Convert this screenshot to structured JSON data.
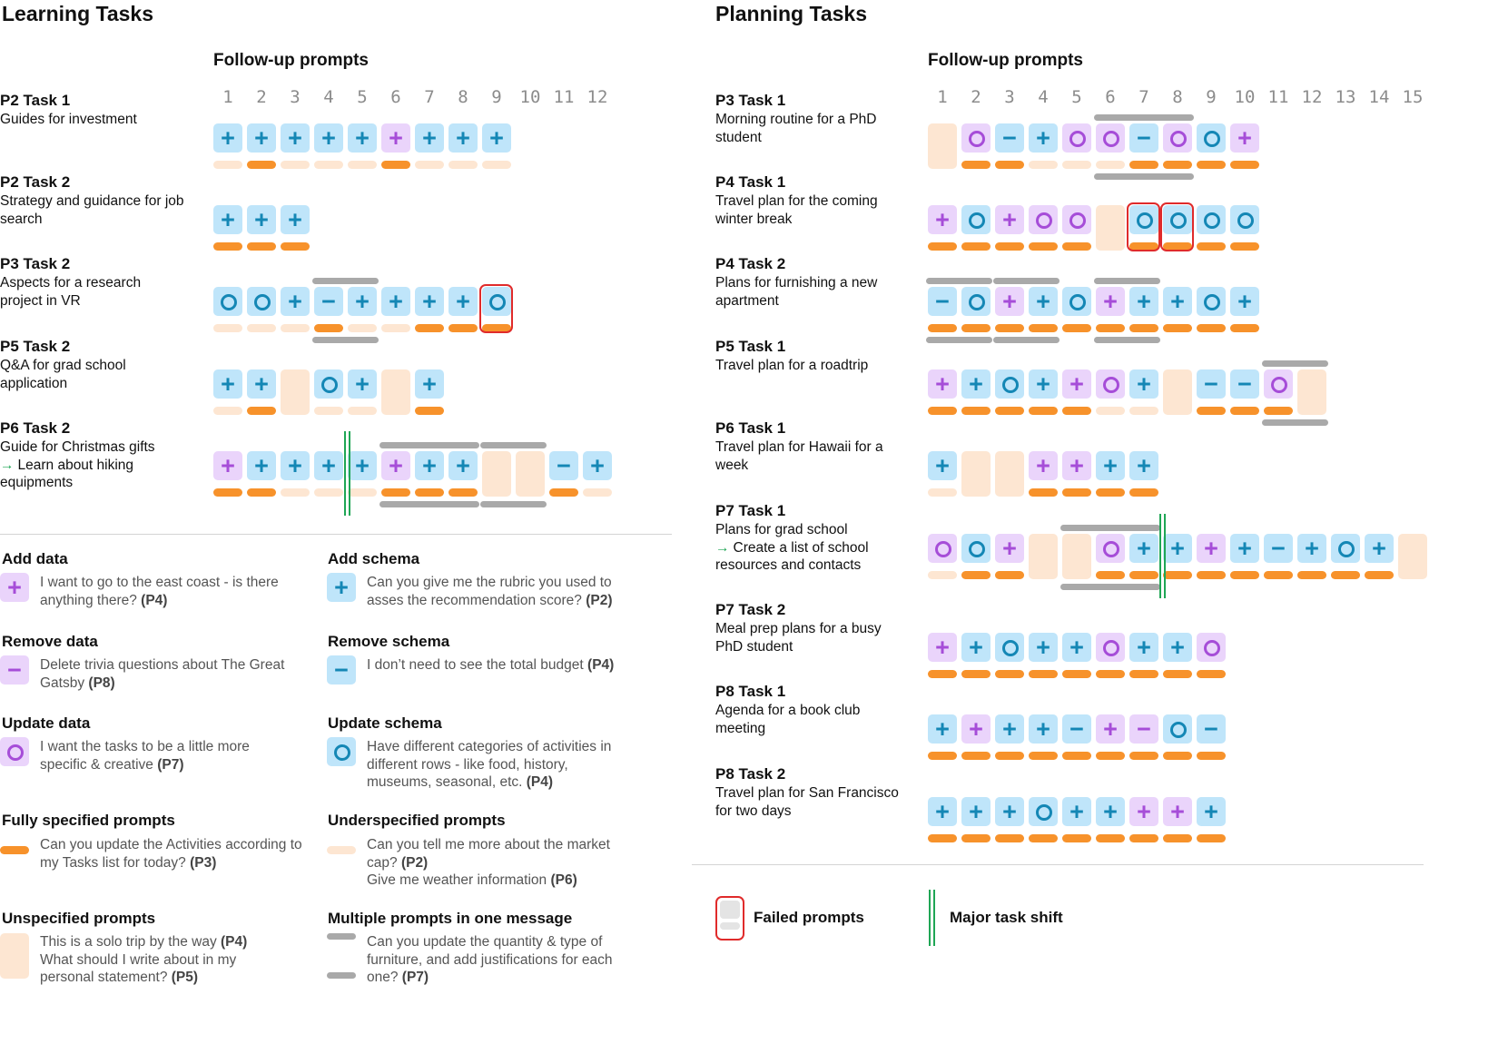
{
  "colors": {
    "schema_bg": "#bfe5fa",
    "schema_fg": "#1487b5",
    "data_bg": "#ead4fb",
    "data_fg": "#a64dd8",
    "full_bar": "#f7922b",
    "under_bar": "#fde6d2",
    "unspecified": "#fde6d2",
    "group": "#a9a9a9",
    "fail": "#e02b2b",
    "shift": "#1fa655"
  },
  "learning": {
    "title": "Learning Tasks",
    "followup_title": "Follow-up prompts",
    "columns": [
      "1",
      "2",
      "3",
      "4",
      "5",
      "6",
      "7",
      "8",
      "9",
      "10",
      "11",
      "12"
    ],
    "tasks": [
      {
        "name": "P2 Task 1",
        "desc": "Guides for investment",
        "cells": [
          "s+",
          "s+",
          "s+",
          "s+",
          "s+",
          "d+",
          "s+",
          "s+",
          "s+"
        ],
        "bars": [
          "u",
          "f",
          "u",
          "u",
          "u",
          "f",
          "u",
          "u",
          "u"
        ],
        "groups": [],
        "fails": [],
        "shift": null
      },
      {
        "name": "P2 Task 2",
        "desc": "Strategy and guidance for job search",
        "cells": [
          "s+",
          "s+",
          "s+"
        ],
        "bars": [
          "f",
          "f",
          "f"
        ],
        "groups": [],
        "fails": [],
        "shift": null
      },
      {
        "name": "P3 Task 2",
        "desc": "Aspects for a research project in VR",
        "cells": [
          "so",
          "so",
          "s+",
          "s-",
          "s+",
          "s+",
          "s+",
          "s+",
          "so"
        ],
        "bars": [
          "u",
          "u",
          "u",
          "f",
          "u",
          "u",
          "f",
          "f",
          "f"
        ],
        "groups": [
          [
            3,
            4
          ]
        ],
        "fails": [
          8
        ],
        "shift": null
      },
      {
        "name": "P5 Task 2",
        "desc": "Q&A for grad school application",
        "cells": [
          "s+",
          "s+",
          "e",
          "so",
          "s+",
          "e",
          "s+"
        ],
        "bars": [
          "u",
          "f",
          null,
          "u",
          "u",
          null,
          "f"
        ],
        "groups": [],
        "fails": [],
        "shift": null
      },
      {
        "name": "P6 Task 2",
        "desc": "Guide for Christmas gifts",
        "shift_desc": "Learn about hiking equipments",
        "cells": [
          "d+",
          "s+",
          "s+",
          "s+",
          "s+",
          "d+",
          "s+",
          "s+",
          "e",
          "e",
          "s-",
          "s+"
        ],
        "bars": [
          "f",
          "f",
          "u",
          "u",
          "u",
          "f",
          "f",
          "f",
          null,
          null,
          "f",
          "u"
        ],
        "groups": [
          [
            5,
            7
          ],
          [
            8,
            9
          ]
        ],
        "fails": [],
        "shift": 4
      }
    ]
  },
  "planning": {
    "title": "Planning Tasks",
    "followup_title": "Follow-up prompts",
    "columns": [
      "1",
      "2",
      "3",
      "4",
      "5",
      "6",
      "7",
      "8",
      "9",
      "10",
      "11",
      "12",
      "13",
      "14",
      "15"
    ],
    "tasks": [
      {
        "name": "P3 Task 1",
        "desc": "Morning routine for a PhD student",
        "cells": [
          "e",
          "do",
          "s-",
          "s+",
          "do",
          "do",
          "s-",
          "do",
          "so",
          "d+"
        ],
        "bars": [
          null,
          "f",
          "f",
          "u",
          "u",
          "u",
          "f",
          "f",
          "f",
          "f"
        ],
        "groups": [
          [
            5,
            7
          ]
        ],
        "fails": [],
        "shift": null
      },
      {
        "name": "P4 Task 1",
        "desc": "Travel plan for the coming winter break",
        "cells": [
          "d+",
          "so",
          "d+",
          "do",
          "do",
          "e",
          "so",
          "so",
          "so",
          "so"
        ],
        "bars": [
          "f",
          "f",
          "f",
          "f",
          "f",
          null,
          "f",
          "f",
          "f",
          "f"
        ],
        "groups": [],
        "fails": [
          6,
          7
        ],
        "shift": null
      },
      {
        "name": "P4 Task 2",
        "desc": "Plans for furnishing a new apartment",
        "cells": [
          "s-",
          "so",
          "d+",
          "s+",
          "so",
          "d+",
          "s+",
          "s+",
          "so",
          "s+"
        ],
        "bars": [
          "f",
          "f",
          "f",
          "f",
          "f",
          "f",
          "f",
          "f",
          "f",
          "f"
        ],
        "groups": [
          [
            0,
            1
          ],
          [
            2,
            3
          ],
          [
            5,
            6
          ]
        ],
        "fails": [],
        "shift": null
      },
      {
        "name": "P5 Task 1",
        "desc": "Travel plan for a roadtrip",
        "cells": [
          "d+",
          "s+",
          "so",
          "s+",
          "d+",
          "do",
          "s+",
          "e",
          "s-",
          "s-",
          "do",
          "e"
        ],
        "bars": [
          "f",
          "f",
          "f",
          "f",
          "f",
          "u",
          "u",
          null,
          "f",
          "f",
          "f",
          null
        ],
        "groups": [
          [
            10,
            11
          ]
        ],
        "fails": [],
        "shift": null
      },
      {
        "name": "P6 Task 1",
        "desc": "Travel plan for Hawaii for a week",
        "cells": [
          "s+",
          "e",
          "e",
          "d+",
          "d+",
          "s+",
          "s+"
        ],
        "bars": [
          "u",
          null,
          null,
          "f",
          "f",
          "f",
          "f"
        ],
        "groups": [],
        "fails": [],
        "shift": null
      },
      {
        "name": "P7 Task 1",
        "desc": "Plans for grad school",
        "shift_desc": "Create a list of school resources and contacts",
        "cells": [
          "do",
          "so",
          "d+",
          "e",
          "e",
          "do",
          "s+",
          "s+",
          "d+",
          "s+",
          "s-",
          "s+",
          "so",
          "s+",
          "e"
        ],
        "bars": [
          "u",
          "f",
          "f",
          null,
          null,
          "f",
          "f",
          "f",
          "f",
          "f",
          "f",
          "f",
          "f",
          "f",
          null
        ],
        "groups": [
          [
            4,
            6
          ]
        ],
        "fails": [],
        "shift": 7
      },
      {
        "name": "P7 Task 2",
        "desc": "Meal prep plans for a busy PhD student",
        "cells": [
          "d+",
          "s+",
          "so",
          "s+",
          "s+",
          "do",
          "s+",
          "s+",
          "do"
        ],
        "bars": [
          "f",
          "f",
          "f",
          "f",
          "f",
          "f",
          "f",
          "f",
          "f"
        ],
        "groups": [],
        "fails": [],
        "shift": null
      },
      {
        "name": "P8 Task 1",
        "desc": "Agenda for a book club meeting",
        "cells": [
          "s+",
          "d+",
          "s+",
          "s+",
          "s-",
          "d+",
          "d-",
          "so",
          "s-"
        ],
        "bars": [
          "f",
          "f",
          "f",
          "f",
          "f",
          "f",
          "f",
          "f",
          "f"
        ],
        "groups": [],
        "fails": [],
        "shift": null
      },
      {
        "name": "P8 Task 2",
        "desc": "Travel plan for San Francisco for two days",
        "cells": [
          "s+",
          "s+",
          "s+",
          "so",
          "s+",
          "s+",
          "d+",
          "d+",
          "s+"
        ],
        "bars": [
          "f",
          "f",
          "f",
          "f",
          "f",
          "f",
          "f",
          "f",
          "f"
        ],
        "groups": [],
        "fails": [],
        "shift": null
      }
    ]
  },
  "legend": {
    "add_data": {
      "title": "Add data",
      "text": "I want to go to the east coast - is there anything there?",
      "who": "(P4)"
    },
    "add_schema": {
      "title": "Add schema",
      "text": "Can you give me the rubric you used to asses the recommendation score?",
      "who": "(P2)"
    },
    "remove_data": {
      "title": "Remove data",
      "text": "Delete trivia questions about The Great Gatsby",
      "who": "(P8)"
    },
    "remove_schema": {
      "title": "Remove schema",
      "text": "I don’t need to see the total budget",
      "who": "(P4)"
    },
    "update_data": {
      "title": "Update data",
      "text": "I want the tasks to be a little more specific & creative",
      "who": "(P7)"
    },
    "update_schema": {
      "title": "Update schema",
      "text": "Have different categories of activities in different rows - like food, history, museums, seasonal, etc.",
      "who": "(P4)"
    },
    "fully": {
      "title": "Fully specified prompts",
      "text": "Can you update the Activities according to my Tasks list for today?",
      "who": "(P3)"
    },
    "under": {
      "title": "Underspecified prompts",
      "text": "Can you tell me more about the market cap?",
      "who": "(P2)",
      "text2": "Give me weather information",
      "who2": "(P6)"
    },
    "unspec": {
      "title": "Unspecified prompts",
      "text": "This is a solo trip by the way",
      "who": "(P4)",
      "text2": "What should I write about in my personal statement?",
      "who2": "(P5)"
    },
    "multi": {
      "title": "Multiple prompts in one message",
      "text": "Can you update the quantity & type of furniture, and add justifications for each one?",
      "who": "(P7)"
    },
    "failed": "Failed prompts",
    "shift": "Major task shift"
  }
}
